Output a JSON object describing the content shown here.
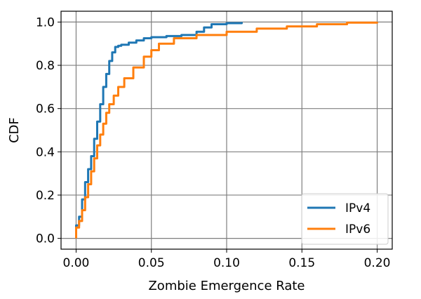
{
  "chart_data": {
    "type": "line",
    "xlabel": "Zombie Emergence Rate",
    "ylabel": "CDF",
    "xlim": [
      -0.01,
      0.21
    ],
    "ylim": [
      -0.05,
      1.05
    ],
    "xticks": [
      0.0,
      0.05,
      0.1,
      0.15,
      0.2
    ],
    "xtick_labels": [
      "0.00",
      "0.05",
      "0.10",
      "0.15",
      "0.20"
    ],
    "yticks": [
      0.0,
      0.2,
      0.4,
      0.6,
      0.8,
      1.0
    ],
    "ytick_labels": [
      "0.0",
      "0.2",
      "0.4",
      "0.6",
      "0.8",
      "1.0"
    ],
    "grid": true,
    "legend_position": "bottom-right",
    "series": [
      {
        "name": "IPv4",
        "color": "#1f77b4",
        "x": [
          0.0,
          0.0,
          0.002,
          0.004,
          0.006,
          0.008,
          0.01,
          0.012,
          0.014,
          0.016,
          0.018,
          0.02,
          0.022,
          0.024,
          0.026,
          0.028,
          0.03,
          0.035,
          0.04,
          0.045,
          0.05,
          0.06,
          0.07,
          0.08,
          0.085,
          0.09,
          0.1,
          0.11
        ],
        "y": [
          0.0,
          0.06,
          0.1,
          0.18,
          0.26,
          0.32,
          0.38,
          0.46,
          0.54,
          0.62,
          0.7,
          0.76,
          0.82,
          0.86,
          0.885,
          0.89,
          0.895,
          0.905,
          0.915,
          0.925,
          0.93,
          0.935,
          0.94,
          0.955,
          0.975,
          0.99,
          0.995,
          1.0
        ]
      },
      {
        "name": "IPv6",
        "color": "#ff7f0e",
        "x": [
          0.0,
          0.0,
          0.002,
          0.004,
          0.006,
          0.008,
          0.01,
          0.012,
          0.014,
          0.016,
          0.018,
          0.02,
          0.022,
          0.025,
          0.028,
          0.032,
          0.038,
          0.045,
          0.05,
          0.055,
          0.065,
          0.08,
          0.1,
          0.12,
          0.14,
          0.16,
          0.18,
          0.2
        ],
        "y": [
          0.0,
          0.05,
          0.08,
          0.13,
          0.19,
          0.25,
          0.31,
          0.37,
          0.43,
          0.48,
          0.53,
          0.58,
          0.62,
          0.66,
          0.7,
          0.74,
          0.79,
          0.84,
          0.87,
          0.9,
          0.925,
          0.94,
          0.955,
          0.97,
          0.98,
          0.99,
          0.997,
          1.0
        ]
      }
    ]
  }
}
